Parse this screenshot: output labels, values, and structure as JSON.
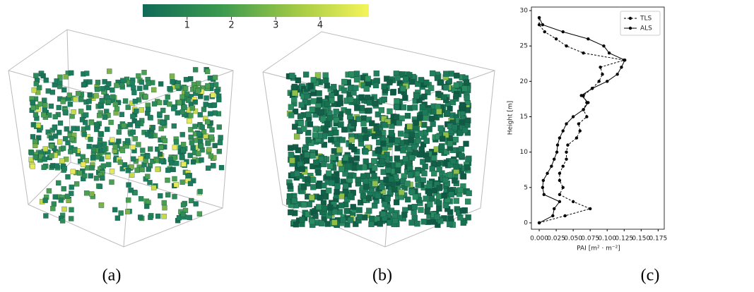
{
  "colorbar": {
    "lim": [
      0,
      5.1
    ],
    "ticks": [
      1,
      2,
      3,
      4
    ]
  },
  "panels": [
    "(a)",
    "(b)",
    "(c)"
  ],
  "chart_data": {
    "type": "line",
    "xlabel": "PAI [m² · m⁻²]",
    "ylabel": "Height [m]",
    "y": [
      0,
      1,
      2,
      3,
      4,
      5,
      6,
      7,
      8,
      9,
      10,
      11,
      12,
      13,
      14,
      15,
      16,
      17,
      18,
      19,
      20,
      21,
      22,
      23,
      24,
      25,
      26,
      27,
      28,
      29
    ],
    "series": [
      {
        "name": "TLS",
        "color": "#000000",
        "dash": true,
        "values": [
          0,
          0.038,
          0.075,
          0.05,
          0.03,
          0.035,
          0.03,
          0.03,
          0.035,
          0.04,
          0.04,
          0.042,
          0.055,
          0.06,
          0.058,
          0.07,
          0.065,
          0.07,
          0.065,
          0.078,
          0.088,
          0.093,
          0.09,
          0.125,
          0.065,
          0.04,
          0.025,
          0.008,
          0,
          0
        ]
      },
      {
        "name": "ALS",
        "color": "#000000",
        "dash": false,
        "values": [
          0,
          0.02,
          0.022,
          0.03,
          0.007,
          0.005,
          0.006,
          0.012,
          0.018,
          0.022,
          0.026,
          0.027,
          0.03,
          0.035,
          0.04,
          0.05,
          0.065,
          0.072,
          0.062,
          0.078,
          0.1,
          0.115,
          0.121,
          0.126,
          0.103,
          0.095,
          0.072,
          0.035,
          0.005,
          0
        ]
      }
    ],
    "xlim": [
      -0.0115,
      0.184
    ],
    "ylim": [
      -0.9,
      30.5
    ],
    "xticks": [
      {
        "value": 0,
        "label": "0.000"
      },
      {
        "value": 0.025,
        "label": "0.025"
      },
      {
        "value": 0.05,
        "label": "0.050"
      },
      {
        "value": 0.075,
        "label": "0.075"
      },
      {
        "value": 0.1,
        "label": "0.100"
      },
      {
        "value": 0.125,
        "label": "0.125"
      },
      {
        "value": 0.15,
        "label": "0.150"
      },
      {
        "value": 0.175,
        "label": "0.175"
      }
    ],
    "yticks": [
      0,
      5,
      10,
      15,
      20,
      25,
      30
    ],
    "legend": "upper right",
    "grid": false
  }
}
